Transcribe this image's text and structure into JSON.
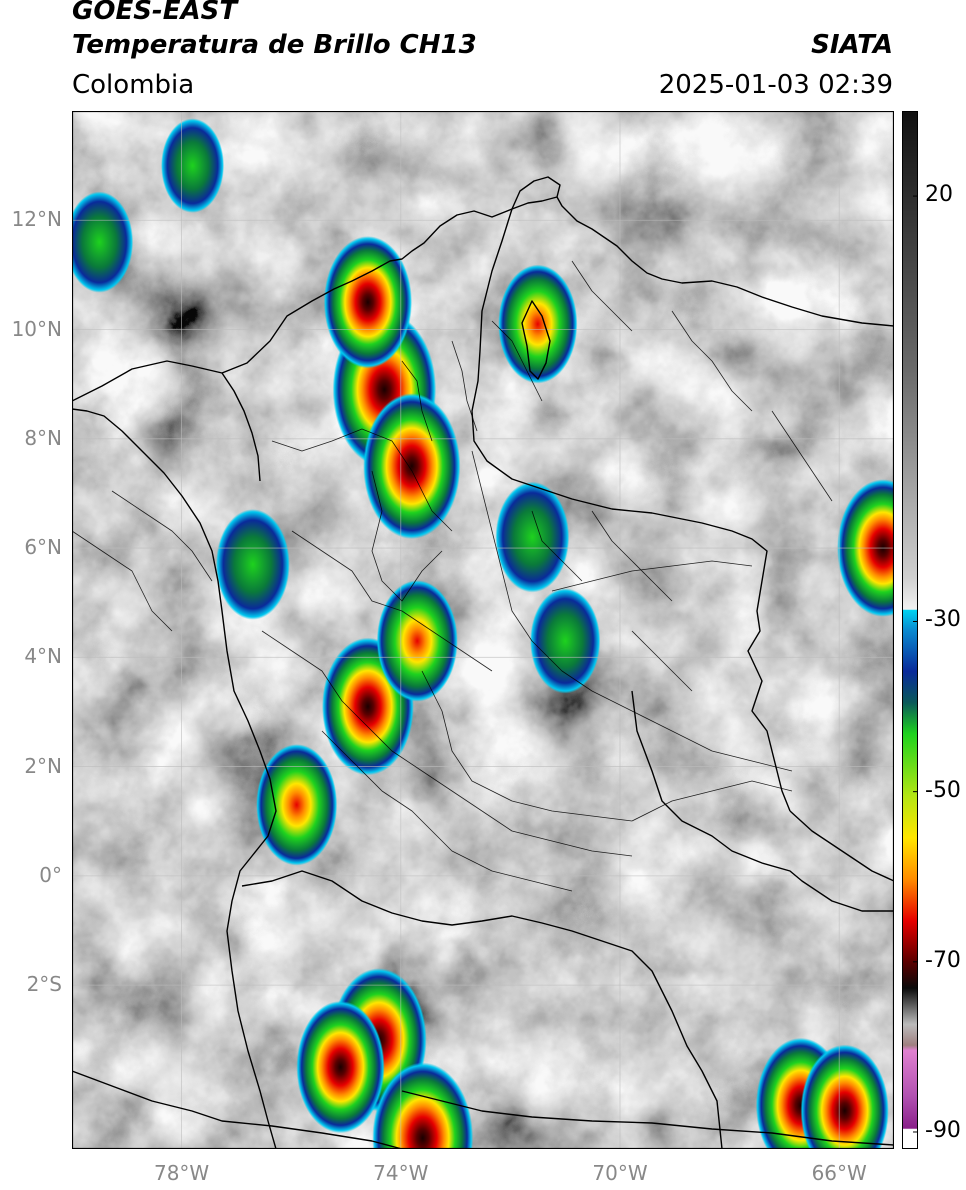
{
  "header": {
    "satellite": "GOES-EAST",
    "product": "Temperatura de Brillo CH13",
    "region": "Colombia",
    "source": "SIATA",
    "datetime": "2025-01-03 02:39"
  },
  "map": {
    "lon_range": [
      -80,
      -65
    ],
    "lat_range": [
      -5,
      14
    ],
    "lat_ticks": [
      {
        "value": 12,
        "label": "12°N"
      },
      {
        "value": 10,
        "label": "10°N"
      },
      {
        "value": 8,
        "label": "8°N"
      },
      {
        "value": 6,
        "label": "6°N"
      },
      {
        "value": 4,
        "label": "4°N"
      },
      {
        "value": 2,
        "label": "2°N"
      },
      {
        "value": 0,
        "label": "0°"
      },
      {
        "value": -2,
        "label": "2°S"
      }
    ],
    "lon_ticks": [
      {
        "value": -78,
        "label": "78°W"
      },
      {
        "value": -74,
        "label": "74°W"
      },
      {
        "value": -70,
        "label": "70°W"
      },
      {
        "value": -66,
        "label": "66°W"
      }
    ],
    "storm_cells": [
      {
        "lon": -74.3,
        "lat": 8.9,
        "peak": -75
      },
      {
        "lon": -73.8,
        "lat": 7.5,
        "peak": -68
      },
      {
        "lon": -74.6,
        "lat": 10.5,
        "peak": -58
      },
      {
        "lon": -74.6,
        "lat": 3.1,
        "peak": -62
      },
      {
        "lon": -73.7,
        "lat": 4.3,
        "peak": -50
      },
      {
        "lon": -74.4,
        "lat": -3.0,
        "peak": -66
      },
      {
        "lon": -75.1,
        "lat": -3.5,
        "peak": -58
      },
      {
        "lon": -73.6,
        "lat": -4.8,
        "peak": -72
      },
      {
        "lon": -65.2,
        "lat": 6.0,
        "peak": -62
      },
      {
        "lon": -71.6,
        "lat": 6.2,
        "peak": -42
      },
      {
        "lon": -71.5,
        "lat": 10.1,
        "peak": -48
      },
      {
        "lon": -75.9,
        "lat": 1.3,
        "peak": -50
      },
      {
        "lon": -66.7,
        "lat": -4.2,
        "peak": -60
      },
      {
        "lon": -65.9,
        "lat": -4.3,
        "peak": -58
      },
      {
        "lon": -71.0,
        "lat": 4.3,
        "peak": -38
      },
      {
        "lon": -79.5,
        "lat": 11.6,
        "peak": -35
      },
      {
        "lon": -77.8,
        "lat": 13.0,
        "peak": -30
      },
      {
        "lon": -76.7,
        "lat": 5.7,
        "peak": -42
      }
    ]
  },
  "colorbar": {
    "range": [
      -92,
      30
    ],
    "ticks": [
      {
        "value": 20,
        "label": "20"
      },
      {
        "value": -30,
        "label": "-30"
      },
      {
        "value": -50,
        "label": "-50"
      },
      {
        "value": -70,
        "label": "-70"
      },
      {
        "value": -90,
        "label": "-90"
      }
    ],
    "colors": {
      "cyan": "#00c8f0",
      "blue": "#0a2a9a",
      "green": "#1ed21e",
      "yellow": "#ffe600",
      "orange": "#ff8c00",
      "red": "#e60000",
      "darkred": "#5a0000",
      "magenta": "#c850c8"
    }
  }
}
